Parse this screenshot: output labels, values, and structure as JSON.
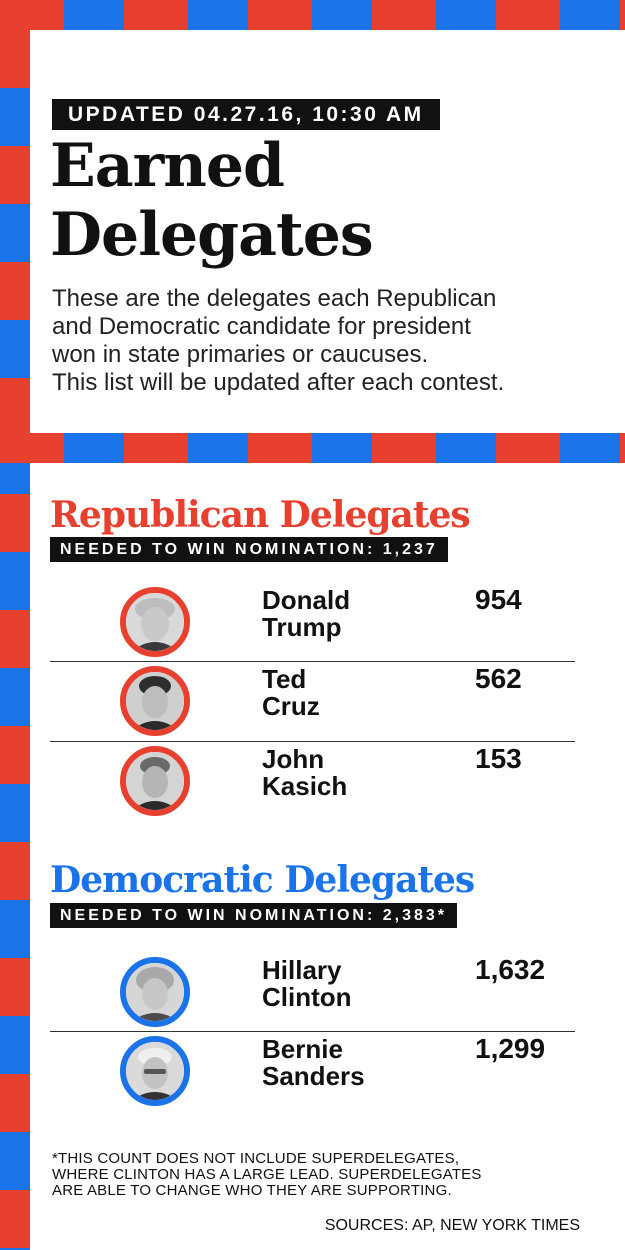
{
  "colors": {
    "republican": "#e8402f",
    "democratic": "#1a73e8",
    "label_bg": "#111111"
  },
  "header": {
    "updated": "UPDATED 04.27.16, 10:30 AM",
    "title_line1": "Earned",
    "title_line2": "Delegates",
    "intro_lines": [
      "These are the delegates each Republican",
      "and Democratic candidate for president",
      "won in state primaries or caucuses.",
      "This list will be updated after each contest."
    ]
  },
  "republican": {
    "title": "Republican Delegates",
    "needed": "NEEDED TO WIN NOMINATION: 1,237",
    "candidates": [
      {
        "first": "Donald",
        "last": "Trump",
        "delegates": "954",
        "photo": "trump-photo"
      },
      {
        "first": "Ted",
        "last": "Cruz",
        "delegates": "562",
        "photo": "cruz-photo"
      },
      {
        "first": "John",
        "last": "Kasich",
        "delegates": "153",
        "photo": "kasich-photo"
      }
    ]
  },
  "democratic": {
    "title": "Democratic Delegates",
    "needed": "NEEDED TO WIN NOMINATION: 2,383*",
    "candidates": [
      {
        "first": "Hillary",
        "last": "Clinton",
        "delegates": "1,632",
        "photo": "clinton-photo"
      },
      {
        "first": "Bernie",
        "last": "Sanders",
        "delegates": "1,299",
        "photo": "sanders-photo"
      }
    ]
  },
  "footnote_lines": [
    "*THIS COUNT DOES NOT INCLUDE SUPERDELEGATES,",
    "WHERE CLINTON HAS A LARGE LEAD. SUPERDELEGATES",
    "ARE ABLE TO CHANGE WHO THEY ARE SUPPORTING."
  ],
  "sources": "SOURCES: AP, NEW YORK TIMES"
}
